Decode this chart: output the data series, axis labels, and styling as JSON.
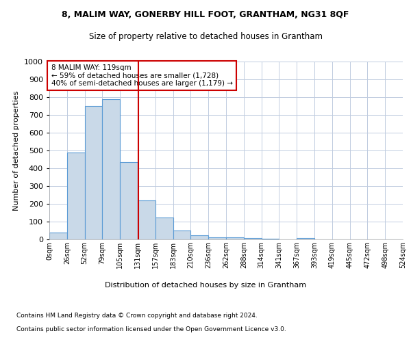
{
  "title1": "8, MALIM WAY, GONERBY HILL FOOT, GRANTHAM, NG31 8QF",
  "title2": "Size of property relative to detached houses in Grantham",
  "xlabel": "Distribution of detached houses by size in Grantham",
  "ylabel": "Number of detached properties",
  "bin_labels": [
    "0sqm",
    "26sqm",
    "52sqm",
    "79sqm",
    "105sqm",
    "131sqm",
    "157sqm",
    "183sqm",
    "210sqm",
    "236sqm",
    "262sqm",
    "288sqm",
    "314sqm",
    "341sqm",
    "367sqm",
    "393sqm",
    "419sqm",
    "445sqm",
    "472sqm",
    "498sqm",
    "524sqm"
  ],
  "bar_heights": [
    40,
    490,
    750,
    790,
    435,
    220,
    125,
    50,
    25,
    12,
    10,
    8,
    5,
    0,
    8,
    0,
    0,
    0,
    0,
    0
  ],
  "bar_color": "#c9d9e8",
  "bar_edgecolor": "#5b9bd5",
  "vline_color": "#cc0000",
  "vline_x": 4.538,
  "annotation_title": "8 MALIM WAY: 119sqm",
  "annotation_line1": "← 59% of detached houses are smaller (1,728)",
  "annotation_line2": "40% of semi-detached houses are larger (1,179) →",
  "annotation_box_color": "#ffffff",
  "annotation_box_edgecolor": "#cc0000",
  "ylim": [
    0,
    1000
  ],
  "yticks": [
    0,
    100,
    200,
    300,
    400,
    500,
    600,
    700,
    800,
    900,
    1000
  ],
  "grid_color": "#c0cce0",
  "footer1": "Contains HM Land Registry data © Crown copyright and database right 2024.",
  "footer2": "Contains public sector information licensed under the Open Government Licence v3.0."
}
